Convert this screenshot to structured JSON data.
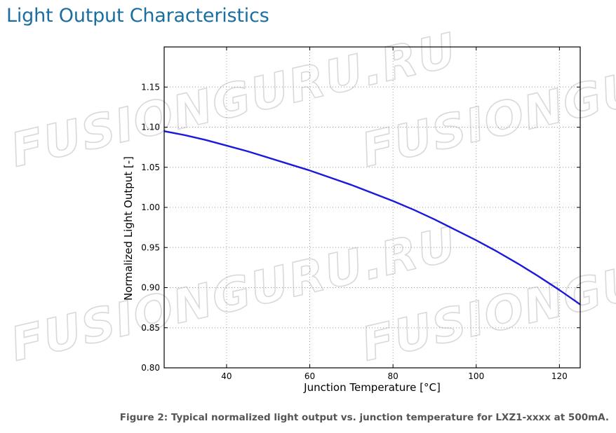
{
  "page": {
    "title": "Light Output Characteristics",
    "caption": "Figure 2: Typical normalized light output vs. junction temperature for LXZ1-xxxx at 500mA.",
    "watermark_text": "FUSIONGURU.RU"
  },
  "colors": {
    "title": "#1a6ea0",
    "caption": "#555555",
    "series": "#1a1adb",
    "grid": "#9e9e9e",
    "watermark": "#d9d9d9"
  },
  "chart_data": {
    "type": "line",
    "title": "",
    "xlabel": "Junction Temperature [°C]",
    "ylabel": "Normalized Light Output [-]",
    "xlim": [
      25,
      125
    ],
    "ylim": [
      0.8,
      1.2
    ],
    "x_ticks": [
      40,
      60,
      80,
      100,
      120
    ],
    "y_ticks": [
      0.8,
      0.85,
      0.9,
      0.95,
      1.0,
      1.05,
      1.1,
      1.15
    ],
    "x_tick_labels": [
      "40",
      "60",
      "80",
      "100",
      "120"
    ],
    "y_tick_labels": [
      "0.80",
      "0.85",
      "0.90",
      "0.95",
      "1.00",
      "1.05",
      "1.10",
      "1.15"
    ],
    "grid": true,
    "legend": false,
    "series": [
      {
        "x": [
          25,
          30,
          35,
          40,
          45,
          50,
          55,
          60,
          65,
          70,
          75,
          80,
          85,
          90,
          95,
          100,
          105,
          110,
          115,
          120,
          125
        ],
        "y": [
          1.095,
          1.09,
          1.084,
          1.077,
          1.07,
          1.062,
          1.054,
          1.046,
          1.037,
          1.028,
          1.018,
          1.008,
          0.997,
          0.985,
          0.972,
          0.959,
          0.945,
          0.93,
          0.914,
          0.897,
          0.879
        ]
      }
    ]
  }
}
